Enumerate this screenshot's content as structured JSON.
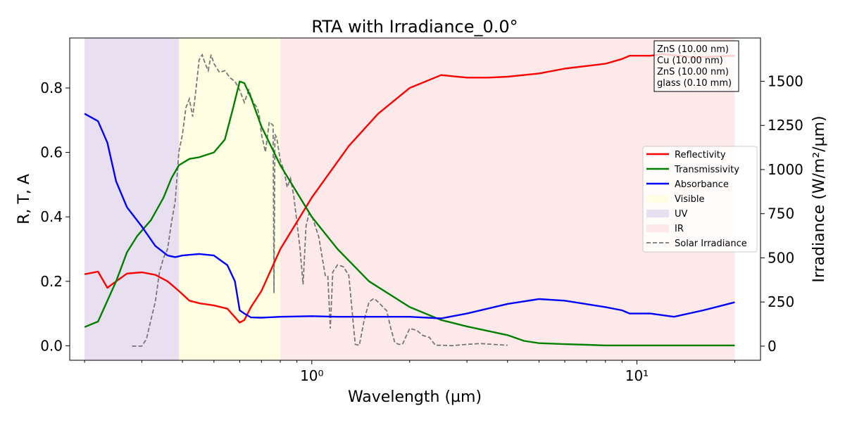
{
  "chart_data": {
    "type": "line",
    "title": "RTA with Irradiance_0.0°",
    "xlabel": "Wavelength (µm)",
    "ylabel": "R, T, A",
    "y2label": "Irradiance (W/m²/µm)",
    "x_scale": "log",
    "xlim": [
      0.18,
      24
    ],
    "ylim": [
      -0.045,
      0.955
    ],
    "y2lim": [
      -80,
      1745
    ],
    "x_ticks": [
      {
        "value": 1,
        "label": "10⁰"
      },
      {
        "value": 10,
        "label": "10¹"
      }
    ],
    "y_ticks": [
      {
        "value": 0.0,
        "label": "0.0"
      },
      {
        "value": 0.2,
        "label": "0.2"
      },
      {
        "value": 0.4,
        "label": "0.4"
      },
      {
        "value": 0.6,
        "label": "0.6"
      },
      {
        "value": 0.8,
        "label": "0.8"
      }
    ],
    "y2_ticks": [
      {
        "value": 0,
        "label": "0"
      },
      {
        "value": 250,
        "label": "250"
      },
      {
        "value": 500,
        "label": "500"
      },
      {
        "value": 750,
        "label": "750"
      },
      {
        "value": 1000,
        "label": "1000"
      },
      {
        "value": 1250,
        "label": "1250"
      },
      {
        "value": 1500,
        "label": "1500"
      }
    ],
    "regions": [
      {
        "name": "UV",
        "from": 0.2,
        "to": 0.39,
        "color": "#e8dff0"
      },
      {
        "name": "Visible",
        "from": 0.39,
        "to": 0.8,
        "color": "#fffee3"
      },
      {
        "name": "IR",
        "from": 0.8,
        "to": 20,
        "color": "#fde9e9"
      }
    ],
    "series": [
      {
        "name": "Reflectivity",
        "color": "#ff0000",
        "axis": "left",
        "x": [
          0.2,
          0.22,
          0.235,
          0.25,
          0.27,
          0.3,
          0.33,
          0.36,
          0.39,
          0.42,
          0.45,
          0.5,
          0.55,
          0.6,
          0.62,
          0.65,
          0.7,
          0.8,
          1.0,
          1.3,
          1.6,
          2.0,
          2.5,
          3.0,
          3.5,
          4.0,
          5.0,
          6.0,
          8.0,
          9.0,
          9.5,
          10.0,
          11.0,
          12.0,
          15.0,
          20.0
        ],
        "y": [
          0.222,
          0.23,
          0.18,
          0.2,
          0.224,
          0.228,
          0.22,
          0.2,
          0.17,
          0.14,
          0.132,
          0.125,
          0.115,
          0.072,
          0.08,
          0.12,
          0.17,
          0.3,
          0.46,
          0.62,
          0.72,
          0.8,
          0.84,
          0.832,
          0.832,
          0.835,
          0.845,
          0.86,
          0.875,
          0.89,
          0.9,
          0.9,
          0.9,
          0.905,
          0.895,
          0.9
        ]
      },
      {
        "name": "Transmissivity",
        "color": "#008000",
        "axis": "left",
        "x": [
          0.2,
          0.22,
          0.25,
          0.27,
          0.29,
          0.32,
          0.35,
          0.37,
          0.39,
          0.42,
          0.45,
          0.5,
          0.54,
          0.57,
          0.6,
          0.62,
          0.65,
          0.7,
          0.8,
          1.0,
          1.2,
          1.5,
          2.0,
          2.5,
          3.0,
          4.0,
          4.5,
          5.0,
          6.0,
          7.0,
          8.0,
          10.0,
          15.0,
          20.0
        ],
        "y": [
          0.058,
          0.075,
          0.2,
          0.29,
          0.34,
          0.39,
          0.46,
          0.52,
          0.56,
          0.58,
          0.585,
          0.6,
          0.64,
          0.73,
          0.82,
          0.815,
          0.77,
          0.68,
          0.56,
          0.4,
          0.3,
          0.2,
          0.12,
          0.08,
          0.06,
          0.033,
          0.015,
          0.008,
          0.005,
          0.003,
          0.001,
          0.001,
          0.001,
          0.001
        ]
      },
      {
        "name": "Absorbance",
        "color": "#0000ff",
        "axis": "left",
        "x": [
          0.2,
          0.22,
          0.235,
          0.25,
          0.27,
          0.3,
          0.33,
          0.36,
          0.38,
          0.4,
          0.45,
          0.5,
          0.55,
          0.58,
          0.6,
          0.62,
          0.65,
          0.7,
          0.8,
          1.0,
          1.2,
          1.5,
          2.0,
          2.5,
          3.0,
          4.0,
          5.0,
          6.0,
          8.0,
          9.0,
          9.5,
          10.0,
          11.0,
          13.0,
          16.0,
          20.0
        ],
        "y": [
          0.72,
          0.697,
          0.63,
          0.51,
          0.43,
          0.37,
          0.31,
          0.28,
          0.275,
          0.28,
          0.285,
          0.28,
          0.25,
          0.2,
          0.11,
          0.1,
          0.088,
          0.087,
          0.09,
          0.092,
          0.09,
          0.09,
          0.09,
          0.085,
          0.1,
          0.13,
          0.145,
          0.14,
          0.12,
          0.11,
          0.1,
          0.1,
          0.1,
          0.09,
          0.11,
          0.135
        ]
      }
    ],
    "irradiance": {
      "name": "Solar Irradiance",
      "color": "#777777",
      "axis": "right",
      "dash": "dashed",
      "x": [
        0.28,
        0.3,
        0.31,
        0.32,
        0.33,
        0.34,
        0.35,
        0.36,
        0.37,
        0.38,
        0.39,
        0.4,
        0.41,
        0.42,
        0.43,
        0.44,
        0.45,
        0.46,
        0.47,
        0.48,
        0.49,
        0.5,
        0.52,
        0.54,
        0.56,
        0.58,
        0.6,
        0.62,
        0.64,
        0.66,
        0.68,
        0.69,
        0.7,
        0.72,
        0.74,
        0.76,
        0.765,
        0.77,
        0.78,
        0.8,
        0.82,
        0.84,
        0.86,
        0.88,
        0.9,
        0.92,
        0.94,
        0.96,
        0.98,
        1.0,
        1.05,
        1.1,
        1.12,
        1.14,
        1.16,
        1.2,
        1.25,
        1.3,
        1.33,
        1.36,
        1.4,
        1.45,
        1.5,
        1.55,
        1.6,
        1.7,
        1.75,
        1.8,
        1.85,
        1.9,
        2.0,
        2.1,
        2.2,
        2.3,
        2.4,
        2.5,
        2.7,
        3.0,
        3.3,
        3.6,
        4.0
      ],
      "y": [
        0,
        0,
        40,
        150,
        250,
        420,
        500,
        550,
        700,
        820,
        1100,
        1200,
        1350,
        1400,
        1300,
        1450,
        1620,
        1650,
        1600,
        1560,
        1650,
        1600,
        1550,
        1560,
        1520,
        1500,
        1450,
        1380,
        1450,
        1380,
        1350,
        1300,
        1200,
        1100,
        1270,
        1250,
        300,
        1200,
        1180,
        1050,
        1000,
        900,
        950,
        850,
        700,
        550,
        350,
        680,
        750,
        740,
        620,
        400,
        400,
        100,
        420,
        460,
        450,
        400,
        200,
        10,
        5,
        150,
        250,
        270,
        250,
        200,
        100,
        20,
        10,
        10,
        100,
        90,
        60,
        50,
        5,
        5,
        3,
        10,
        15,
        10,
        5
      ]
    },
    "legend": {
      "position": "center-right",
      "entries": [
        {
          "label": "Reflectivity",
          "kind": "line",
          "color": "#ff0000"
        },
        {
          "label": "Transmissivity",
          "kind": "line",
          "color": "#008000"
        },
        {
          "label": "Absorbance",
          "kind": "line",
          "color": "#0000ff"
        },
        {
          "label": "Visible",
          "kind": "patch",
          "color": "#fffee3"
        },
        {
          "label": "UV",
          "kind": "patch",
          "color": "#e8dff0"
        },
        {
          "label": "IR",
          "kind": "patch",
          "color": "#fde9e9"
        },
        {
          "label": "Solar Irradiance",
          "kind": "dash",
          "color": "#777777"
        }
      ]
    },
    "annotation": {
      "position": "top-right",
      "lines": [
        "ZnS (10.00 nm)",
        "Cu (10.00 nm)",
        "ZnS (10.00 nm)",
        "glass (0.10 mm)"
      ]
    }
  }
}
